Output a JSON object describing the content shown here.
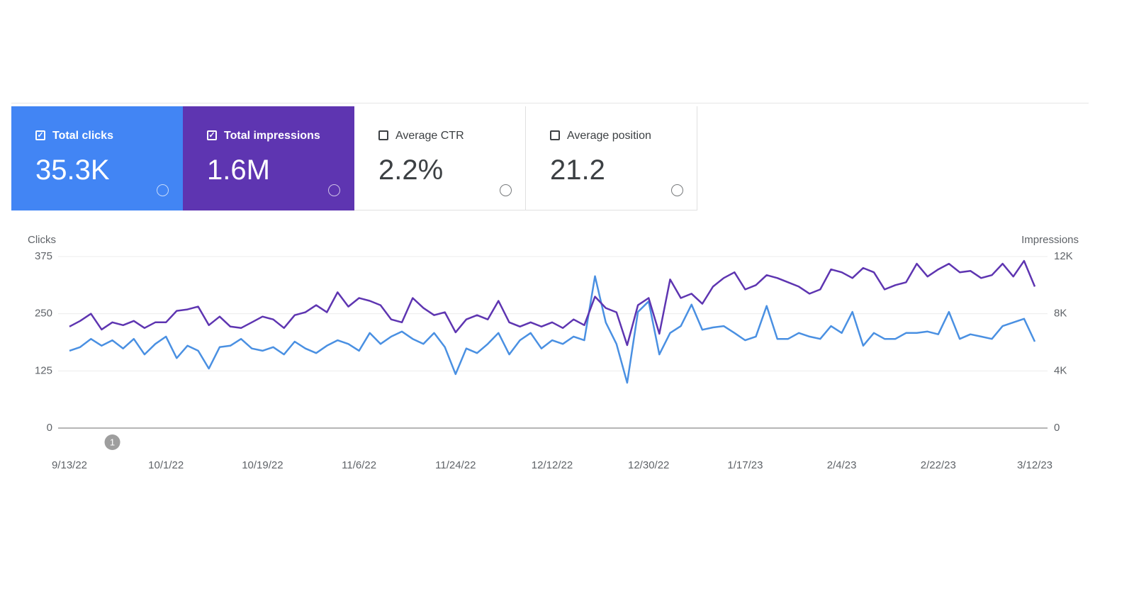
{
  "metrics": [
    {
      "label": "Total clicks",
      "value": "35.3K",
      "selected": true,
      "color": "#4285f4"
    },
    {
      "label": "Total impressions",
      "value": "1.6M",
      "selected": true,
      "color": "#5e35b1"
    },
    {
      "label": "Average CTR",
      "value": "2.2%",
      "selected": false,
      "color": "#ffffff"
    },
    {
      "label": "Average position",
      "value": "21.2",
      "selected": false,
      "color": "#ffffff"
    }
  ],
  "chart_data": {
    "type": "line",
    "y_label": "Clicks",
    "y2_label": "Impressions",
    "categories": [
      "9/13/22",
      null,
      null,
      null,
      null,
      null,
      null,
      null,
      null,
      "10/1/22",
      null,
      null,
      null,
      null,
      null,
      null,
      null,
      null,
      "10/19/22",
      null,
      null,
      null,
      null,
      null,
      null,
      null,
      null,
      "11/6/22",
      null,
      null,
      null,
      null,
      null,
      null,
      null,
      null,
      "11/24/22",
      null,
      null,
      null,
      null,
      null,
      null,
      null,
      null,
      "12/12/22",
      null,
      null,
      null,
      null,
      null,
      null,
      null,
      null,
      "12/30/22",
      null,
      null,
      null,
      null,
      null,
      null,
      null,
      null,
      "1/17/23",
      null,
      null,
      null,
      null,
      null,
      null,
      null,
      null,
      "2/4/23",
      null,
      null,
      null,
      null,
      null,
      null,
      null,
      null,
      "2/22/23",
      null,
      null,
      null,
      null,
      null,
      null,
      null,
      null,
      "3/12/23"
    ],
    "series": [
      {
        "name": "Clicks",
        "color": "#4a90e2",
        "axis": "y",
        "values": [
          169,
          177,
          195,
          180,
          192,
          174,
          195,
          161,
          184,
          200,
          153,
          180,
          169,
          130,
          177,
          180,
          195,
          174,
          169,
          177,
          161,
          189,
          174,
          164,
          180,
          192,
          184,
          169,
          208,
          184,
          200,
          211,
          195,
          184,
          208,
          177,
          118,
          174,
          164,
          184,
          208,
          161,
          192,
          208,
          174,
          192,
          184,
          200,
          192,
          332,
          231,
          184,
          99,
          254,
          277,
          161,
          208,
          223,
          270,
          215,
          220,
          223,
          208,
          192,
          200,
          267,
          195,
          195,
          208,
          200,
          195,
          223,
          208,
          254,
          180,
          208,
          195,
          195,
          208,
          208,
          211,
          205,
          254,
          195,
          205,
          200,
          195,
          223,
          231,
          239,
          189
        ]
      },
      {
        "name": "Impressions",
        "color": "#5e35b1",
        "axis": "y2",
        "values": [
          7100,
          7500,
          8000,
          6900,
          7400,
          7200,
          7500,
          7000,
          7400,
          7400,
          8200,
          8300,
          8500,
          7200,
          7800,
          7100,
          7000,
          7400,
          7800,
          7600,
          7000,
          7900,
          8100,
          8600,
          8100,
          9500,
          8500,
          9100,
          8900,
          8600,
          7600,
          7400,
          9100,
          8400,
          7900,
          8100,
          6700,
          7600,
          7900,
          7600,
          8900,
          7400,
          7100,
          7400,
          7100,
          7400,
          7000,
          7600,
          7200,
          9200,
          8400,
          8100,
          5800,
          8600,
          9100,
          6600,
          10400,
          9100,
          9400,
          8700,
          9900,
          10500,
          10900,
          9700,
          10000,
          10700,
          10500,
          10200,
          9900,
          9400,
          9700,
          11100,
          10900,
          10500,
          11200,
          10900,
          9700,
          10000,
          10200,
          11500,
          10600,
          11100,
          11500,
          10900,
          11000,
          10500,
          10700,
          11500,
          10600,
          11700,
          9900
        ]
      }
    ],
    "ylim": [
      0,
      375
    ],
    "yticks": [
      0,
      125,
      250,
      375
    ],
    "y2lim": [
      0,
      12000
    ],
    "y2ticks": [
      0,
      {
        "value": 4000,
        "label": "4K"
      },
      {
        "value": 8000,
        "label": "8K"
      },
      {
        "value": 12000,
        "label": "12K"
      }
    ],
    "grid": true,
    "annotations": [
      {
        "index": 4,
        "text": "1"
      }
    ]
  }
}
